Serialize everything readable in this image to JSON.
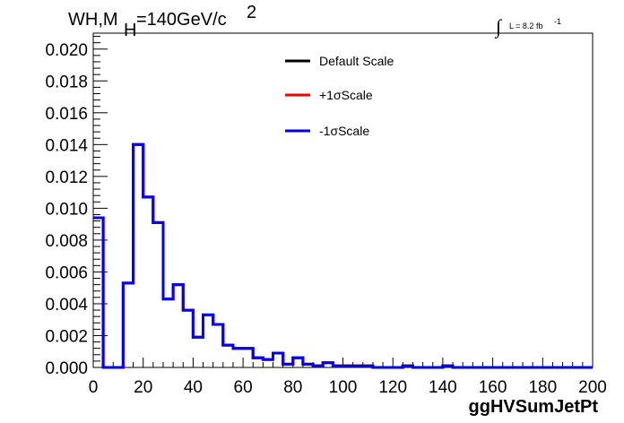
{
  "chart_data": {
    "type": "line",
    "title_parts": {
      "prefix": "WH,M",
      "sub": "H",
      "mid": "=140GeV/c",
      "sup": "2"
    },
    "lumi_parts": {
      "integral": "∫",
      "text": "L = 8.2 fb",
      "sup": "-1"
    },
    "xlabel": "ggHVSumJetPt",
    "ylabel": "",
    "xlim": [
      0,
      200
    ],
    "ylim": [
      0,
      0.021
    ],
    "x_ticks": [
      0,
      20,
      40,
      60,
      80,
      100,
      120,
      140,
      160,
      180,
      200
    ],
    "x_tick_labels": [
      "0",
      "20",
      "40",
      "60",
      "80",
      "100",
      "120",
      "140",
      "160",
      "180",
      "200"
    ],
    "y_ticks": [
      0,
      0.002,
      0.004,
      0.006,
      0.008,
      0.01,
      0.012,
      0.014,
      0.016,
      0.018,
      0.02
    ],
    "y_tick_labels": [
      "0.000",
      "0.002",
      "0.004",
      "0.006",
      "0.008",
      "0.010",
      "0.012",
      "0.014",
      "0.016",
      "0.018",
      "0.020"
    ],
    "bin_edges": [
      0,
      4,
      8,
      12,
      16,
      20,
      24,
      28,
      32,
      36,
      40,
      44,
      48,
      52,
      56,
      60,
      64,
      68,
      72,
      76,
      80,
      84,
      88,
      92,
      96,
      100,
      104,
      108,
      112,
      116,
      120,
      124,
      128,
      132,
      136,
      140,
      144,
      148,
      152,
      156,
      160,
      164,
      168,
      172,
      176,
      180,
      184,
      188,
      192,
      196,
      200
    ],
    "legend_position": "top-center",
    "series": [
      {
        "name": "Default Scale",
        "color": "#000000",
        "values": [
          0.0094,
          0.0,
          0.0,
          0.0053,
          0.014,
          0.0107,
          0.0091,
          0.0043,
          0.0052,
          0.0036,
          0.0019,
          0.0033,
          0.0027,
          0.0014,
          0.0012,
          0.0012,
          0.0006,
          0.0005,
          0.0009,
          0.0002,
          0.0006,
          0.0002,
          0.0001,
          0.0003,
          0.0001,
          0.0001,
          0.0001,
          0.0001,
          0.0,
          0.0,
          0.0,
          0.0001,
          0.0,
          0.0,
          0.0,
          0.0001,
          0.0,
          0.0,
          0.0,
          0.0,
          0.0,
          0.0,
          0.0,
          0.0,
          0.0,
          0.0,
          0.0,
          0.0,
          0.0,
          0.0
        ]
      },
      {
        "name": "+1σScale",
        "color": "#ff0000",
        "values": [
          0.0094,
          0.0,
          0.0,
          0.0053,
          0.014,
          0.0107,
          0.0091,
          0.0043,
          0.0052,
          0.0036,
          0.0019,
          0.0033,
          0.0027,
          0.0014,
          0.0012,
          0.0012,
          0.0006,
          0.0005,
          0.0009,
          0.0002,
          0.0006,
          0.0002,
          0.0001,
          0.0003,
          0.0001,
          0.0001,
          0.0001,
          0.0001,
          0.0,
          0.0,
          0.0,
          0.0001,
          0.0,
          0.0,
          0.0,
          0.0001,
          0.0,
          0.0,
          0.0,
          0.0,
          0.0,
          0.0,
          0.0,
          0.0,
          0.0,
          0.0,
          0.0,
          0.0,
          0.0,
          0.0
        ]
      },
      {
        "name": "-1σScale",
        "color": "#0000ee",
        "values": [
          0.0094,
          0.0,
          0.0,
          0.0053,
          0.014,
          0.0107,
          0.0091,
          0.0043,
          0.0052,
          0.0036,
          0.0019,
          0.0033,
          0.0027,
          0.0014,
          0.0012,
          0.0012,
          0.0006,
          0.0005,
          0.0009,
          0.0002,
          0.0006,
          0.0002,
          0.0001,
          0.0003,
          0.0001,
          0.0001,
          0.0001,
          0.0001,
          0.0,
          0.0,
          0.0,
          0.0001,
          0.0,
          0.0,
          0.0,
          0.0001,
          0.0,
          0.0,
          0.0,
          0.0,
          0.0,
          0.0,
          0.0,
          0.0,
          0.0,
          0.0,
          0.0,
          0.0,
          0.0,
          0.0
        ]
      }
    ]
  }
}
